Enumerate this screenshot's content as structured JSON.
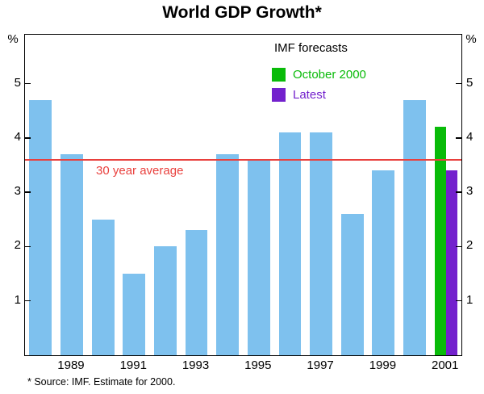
{
  "title": "World GDP Growth*",
  "footnote": "* Source: IMF. Estimate for 2000.",
  "axis_units": {
    "left": "%",
    "right": "%"
  },
  "legend": {
    "heading": "IMF forecasts",
    "items": [
      {
        "label": "October 2000",
        "color": "#09BB09"
      },
      {
        "label": "Latest",
        "color": "#7321CD"
      }
    ]
  },
  "chart_data": {
    "type": "bar",
    "title": "World GDP Growth*",
    "xlabel": "",
    "ylabel": "%",
    "ylim": [
      0,
      5.9
    ],
    "yticks": [
      1,
      2,
      3,
      4,
      5
    ],
    "grid": false,
    "legend_position": "top-right-inside",
    "categories": [
      "1988",
      "1989",
      "1990",
      "1991",
      "1992",
      "1993",
      "1994",
      "1995",
      "1996",
      "1997",
      "1998",
      "1999",
      "2000",
      "2001"
    ],
    "xtick_labels": [
      "1989",
      "1991",
      "1993",
      "1995",
      "1997",
      "1999",
      "2001"
    ],
    "series": [
      {
        "name": "World GDP growth (outcomes, estimate for 2000)",
        "color": "#7EC1EE",
        "values": [
          4.7,
          3.7,
          2.5,
          1.5,
          2.0,
          2.3,
          3.7,
          3.6,
          4.1,
          4.1,
          2.6,
          3.4,
          4.7,
          null
        ]
      },
      {
        "name": "IMF forecast - October 2000",
        "color": "#09BB09",
        "values": [
          null,
          null,
          null,
          null,
          null,
          null,
          null,
          null,
          null,
          null,
          null,
          null,
          null,
          4.2
        ]
      },
      {
        "name": "IMF forecast - Latest",
        "color": "#7321CD",
        "values": [
          null,
          null,
          null,
          null,
          null,
          null,
          null,
          null,
          null,
          null,
          null,
          null,
          null,
          3.4
        ]
      }
    ],
    "average_line": {
      "label": "30 year average",
      "value": 3.6,
      "color": "#E9403D"
    }
  }
}
